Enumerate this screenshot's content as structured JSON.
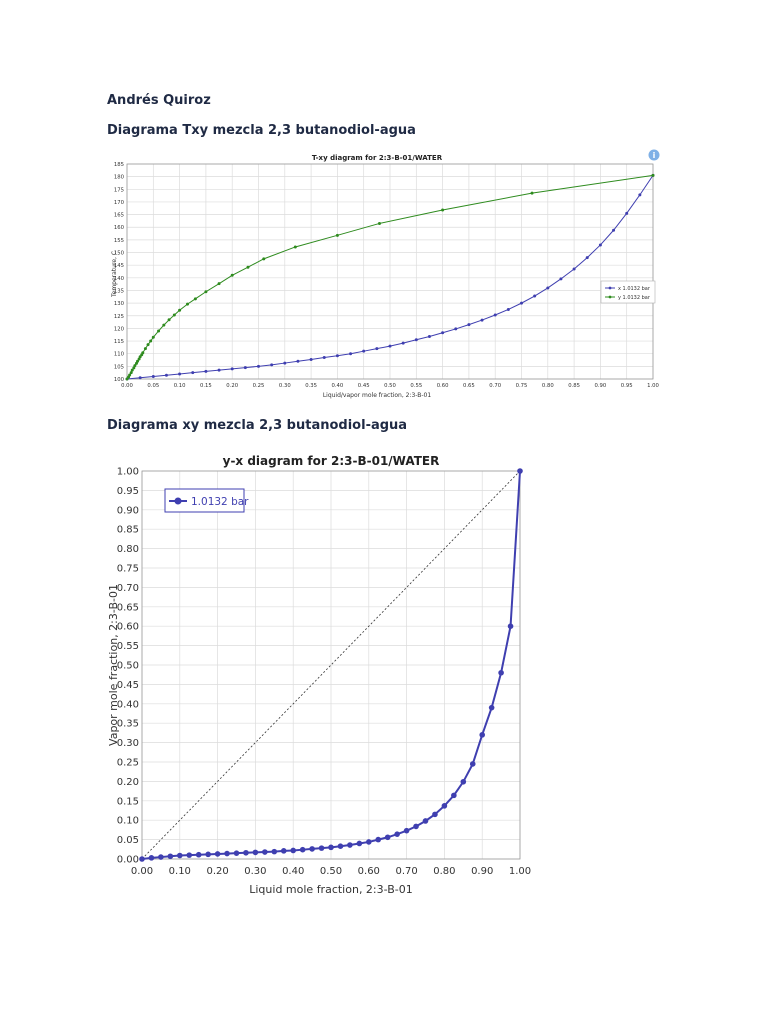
{
  "document": {
    "author": "Andrés Quiroz",
    "heading_txy": "Diagrama Txy mezcla 2,3 butanodiol-agua",
    "heading_xy": "Diagrama xy mezcla 2,3 butanodiol-agua"
  },
  "colors": {
    "x_series": "#3f3fb0",
    "y_series": "#2e8b1e",
    "info_icon": "#7fb0e6"
  },
  "info_icon": "info-icon",
  "chart_data": [
    {
      "type": "line",
      "title": "T-xy diagram for 2:3-B-01/WATER",
      "xlabel": "Liquid/vapor mole fraction, 2:3-B-01",
      "ylabel": "Temperature, C",
      "xlim": [
        0,
        1
      ],
      "ylim": [
        100,
        185
      ],
      "xticks": [
        "0.00",
        "0.05",
        "0.10",
        "0.15",
        "0.20",
        "0.25",
        "0.30",
        "0.35",
        "0.40",
        "0.45",
        "0.50",
        "0.55",
        "0.60",
        "0.65",
        "0.70",
        "0.75",
        "0.80",
        "0.85",
        "0.90",
        "0.95",
        "1.00"
      ],
      "yticks": [
        "100",
        "105",
        "110",
        "115",
        "120",
        "125",
        "130",
        "135",
        "140",
        "145",
        "150",
        "155",
        "160",
        "165",
        "170",
        "175",
        "180",
        "185"
      ],
      "legend_position": "right",
      "grid": true,
      "series": [
        {
          "name": "x 1.0132 bar",
          "x": [
            0,
            0.025,
            0.05,
            0.075,
            0.1,
            0.125,
            0.15,
            0.175,
            0.2,
            0.225,
            0.25,
            0.275,
            0.3,
            0.325,
            0.35,
            0.375,
            0.4,
            0.425,
            0.45,
            0.475,
            0.5,
            0.525,
            0.55,
            0.575,
            0.6,
            0.625,
            0.65,
            0.675,
            0.7,
            0.725,
            0.75,
            0.775,
            0.8,
            0.825,
            0.85,
            0.875,
            0.9,
            0.925,
            0.95,
            0.975,
            1.0
          ],
          "values": [
            100.0,
            100.5,
            101.0,
            101.5,
            102.0,
            102.5,
            103.0,
            103.5,
            104.0,
            104.5,
            105.0,
            105.6,
            106.3,
            107.0,
            107.7,
            108.5,
            109.2,
            110.0,
            111.0,
            112.0,
            113.0,
            114.2,
            115.5,
            116.8,
            118.3,
            119.8,
            121.5,
            123.3,
            125.3,
            127.5,
            130.0,
            132.8,
            136.0,
            139.6,
            143.5,
            148.0,
            153.0,
            158.8,
            165.5,
            172.8,
            180.5
          ]
        },
        {
          "name": "y 1.0132 bar",
          "x": [
            0,
            0.003,
            0.005,
            0.008,
            0.01,
            0.013,
            0.015,
            0.018,
            0.02,
            0.023,
            0.025,
            0.028,
            0.03,
            0.035,
            0.04,
            0.045,
            0.05,
            0.06,
            0.07,
            0.08,
            0.09,
            0.1,
            0.115,
            0.13,
            0.15,
            0.175,
            0.2,
            0.23,
            0.26,
            0.32,
            0.4,
            0.48,
            0.6,
            0.77,
            1.0
          ],
          "values": [
            100.0,
            100.8,
            101.6,
            102.5,
            103.5,
            104.4,
            105.3,
            106.2,
            107.0,
            107.9,
            108.8,
            109.6,
            110.4,
            112.0,
            113.6,
            115.0,
            116.5,
            119.0,
            121.3,
            123.4,
            125.3,
            127.2,
            129.6,
            131.7,
            134.5,
            137.7,
            141.0,
            144.2,
            147.5,
            152.2,
            156.8,
            161.5,
            166.8,
            173.5,
            180.5
          ]
        }
      ]
    },
    {
      "type": "line",
      "title": "y-x diagram for 2:3-B-01/WATER",
      "xlabel": "Liquid mole fraction, 2:3-B-01",
      "ylabel": "Vapor mole fraction, 2:3-B-01",
      "xlim": [
        0,
        1
      ],
      "ylim": [
        0,
        1
      ],
      "xticks": [
        "0.00",
        "0.10",
        "0.20",
        "0.30",
        "0.40",
        "0.50",
        "0.60",
        "0.70",
        "0.80",
        "0.90",
        "1.00"
      ],
      "yticks": [
        "0.00",
        "0.05",
        "0.10",
        "0.15",
        "0.20",
        "0.25",
        "0.30",
        "0.35",
        "0.40",
        "0.45",
        "0.50",
        "0.55",
        "0.60",
        "0.65",
        "0.70",
        "0.75",
        "0.80",
        "0.85",
        "0.90",
        "0.95",
        "1.00"
      ],
      "legend_position": "top-left",
      "grid": true,
      "diagonal": [
        [
          0,
          0
        ],
        [
          1,
          1
        ]
      ],
      "series": [
        {
          "name": "1.0132 bar",
          "x": [
            0,
            0.025,
            0.05,
            0.075,
            0.1,
            0.125,
            0.15,
            0.175,
            0.2,
            0.225,
            0.25,
            0.275,
            0.3,
            0.325,
            0.35,
            0.375,
            0.4,
            0.425,
            0.45,
            0.475,
            0.5,
            0.525,
            0.55,
            0.575,
            0.6,
            0.625,
            0.65,
            0.675,
            0.7,
            0.725,
            0.75,
            0.775,
            0.8,
            0.825,
            0.85,
            0.875,
            0.9,
            0.925,
            0.95,
            0.975,
            1.0
          ],
          "values": [
            0.0,
            0.003,
            0.005,
            0.007,
            0.009,
            0.01,
            0.011,
            0.012,
            0.013,
            0.014,
            0.015,
            0.016,
            0.017,
            0.018,
            0.019,
            0.021,
            0.022,
            0.024,
            0.026,
            0.028,
            0.03,
            0.033,
            0.036,
            0.04,
            0.044,
            0.05,
            0.056,
            0.064,
            0.073,
            0.084,
            0.098,
            0.115,
            0.137,
            0.164,
            0.199,
            0.245,
            0.32,
            0.39,
            0.48,
            0.6,
            1.0
          ]
        }
      ]
    }
  ]
}
